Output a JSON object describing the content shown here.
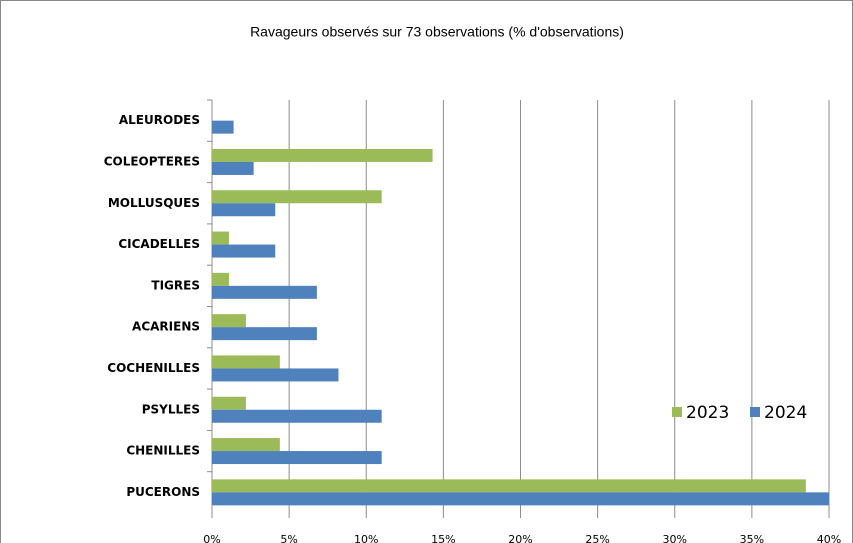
{
  "chart_data": {
    "type": "hbar",
    "title": "Ravageurs observés sur 73 observations (% d'observations)",
    "categories": [
      "ALEURODES",
      "COLEOPTERES",
      "MOLLUSQUES",
      "CICADELLES",
      "TIGRES",
      "ACARIENS",
      "COCHENILLES",
      "PSYLLES",
      "CHENILLES",
      "PUCERONS"
    ],
    "series": [
      {
        "name": "2023",
        "color": "#9bbb59",
        "values": [
          null,
          14.3,
          11.0,
          1.1,
          1.1,
          2.2,
          4.4,
          2.2,
          4.4,
          38.5
        ]
      },
      {
        "name": "2024",
        "color": "#4f81bd",
        "values": [
          1.4,
          2.7,
          4.1,
          4.1,
          6.8,
          6.8,
          8.2,
          11.0,
          11.0,
          40.0
        ]
      }
    ],
    "xlim": [
      0,
      40
    ],
    "xticks": [
      {
        "value": 0,
        "label": "0%"
      },
      {
        "value": 5,
        "label": "5%"
      },
      {
        "value": 10,
        "label": "10%"
      },
      {
        "value": 15,
        "label": "15%"
      },
      {
        "value": 20,
        "label": "20%"
      },
      {
        "value": 25,
        "label": "25%"
      },
      {
        "value": 30,
        "label": "30%"
      },
      {
        "value": 35,
        "label": "35%"
      },
      {
        "value": 40,
        "label": "40%"
      }
    ],
    "grid": true,
    "legend": "right"
  }
}
